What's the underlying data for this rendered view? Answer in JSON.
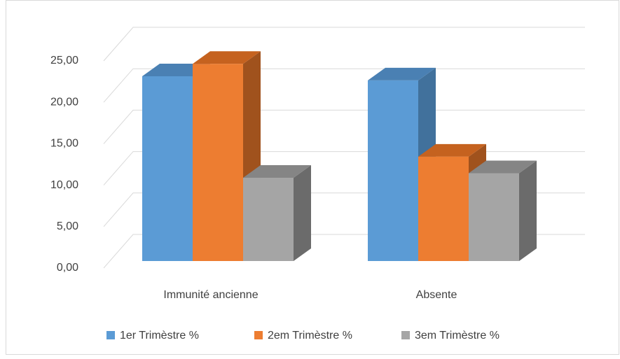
{
  "chart_data": {
    "type": "bar3d",
    "categories": [
      "Immunité ancienne",
      "Absente"
    ],
    "series": [
      {
        "name": "1er Trimèstre %",
        "color": "#5b9bd5",
        "side": "#41719c",
        "top": "#4a80b3",
        "values": [
          22.3,
          21.8
        ]
      },
      {
        "name": "2em Trimèstre %",
        "color": "#ed7d31",
        "side": "#a0521d",
        "top": "#c5621f",
        "values": [
          23.8,
          12.6
        ]
      },
      {
        "name": "3em Trimèstre %",
        "color": "#a5a5a5",
        "side": "#6b6b6b",
        "top": "#858585",
        "values": [
          10.05,
          10.6
        ]
      }
    ],
    "ylim": [
      0,
      25
    ],
    "yticks": [
      {
        "value": 0,
        "label": "0,00"
      },
      {
        "value": 5,
        "label": "5,00"
      },
      {
        "value": 10,
        "label": "10,00"
      },
      {
        "value": 15,
        "label": "15,00"
      },
      {
        "value": 20,
        "label": "20,00"
      },
      {
        "value": 25,
        "label": "25,00"
      }
    ],
    "grid": true,
    "legend": "bottom"
  }
}
